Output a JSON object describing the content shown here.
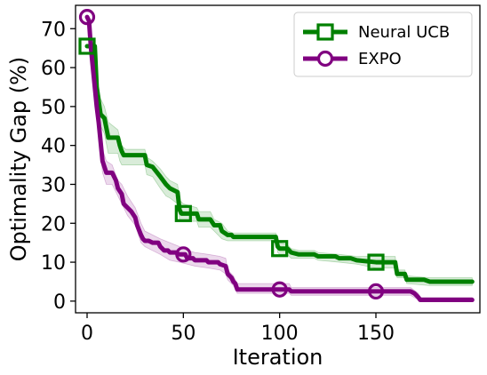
{
  "chart_data": {
    "type": "line",
    "xlabel": "Iteration",
    "ylabel": "Optimality Gap (%)",
    "xlim": [
      -6,
      204
    ],
    "ylim": [
      -3,
      76
    ],
    "x_ticks": [
      0,
      50,
      100,
      150
    ],
    "y_ticks": [
      0,
      10,
      20,
      30,
      40,
      50,
      60,
      70
    ],
    "grid": false,
    "legend": "top-right",
    "series": [
      {
        "name": "Neural UCB",
        "color": "#008000",
        "marker": "square",
        "marker_x": [
          0,
          50,
          100,
          150
        ],
        "points": [
          [
            0,
            65.5
          ],
          [
            4,
            65.5
          ],
          [
            5,
            55
          ],
          [
            7,
            48
          ],
          [
            9,
            47
          ],
          [
            11,
            42
          ],
          [
            16,
            42
          ],
          [
            17,
            40
          ],
          [
            18,
            38.5
          ],
          [
            19,
            37.5
          ],
          [
            30,
            37.5
          ],
          [
            31,
            35
          ],
          [
            34,
            34.5
          ],
          [
            38,
            32
          ],
          [
            41,
            30
          ],
          [
            43,
            29
          ],
          [
            47,
            28
          ],
          [
            48,
            23.5
          ],
          [
            49,
            22.5
          ],
          [
            57,
            22.5
          ],
          [
            58,
            21
          ],
          [
            64,
            21
          ],
          [
            66,
            19.5
          ],
          [
            69,
            19.5
          ],
          [
            70,
            18
          ],
          [
            73,
            17
          ],
          [
            75,
            17
          ],
          [
            76,
            16.5
          ],
          [
            98,
            16.5
          ],
          [
            99,
            14
          ],
          [
            100,
            13.5
          ],
          [
            104,
            13.5
          ],
          [
            106,
            12.5
          ],
          [
            110,
            12
          ],
          [
            118,
            12
          ],
          [
            120,
            11.5
          ],
          [
            129,
            11.5
          ],
          [
            131,
            11
          ],
          [
            137,
            11
          ],
          [
            140,
            10.5
          ],
          [
            150,
            10
          ],
          [
            160,
            10
          ],
          [
            161,
            7
          ],
          [
            165,
            7
          ],
          [
            166,
            5.5
          ],
          [
            175,
            5.5
          ],
          [
            178,
            5
          ],
          [
            200,
            5
          ]
        ],
        "band_upper": [
          [
            0,
            65.5
          ],
          [
            4,
            65.5
          ],
          [
            5,
            57
          ],
          [
            7,
            52
          ],
          [
            9,
            50
          ],
          [
            11,
            46
          ],
          [
            16,
            44
          ],
          [
            17,
            42
          ],
          [
            18,
            40
          ],
          [
            20,
            39
          ],
          [
            30,
            39
          ],
          [
            31,
            37
          ],
          [
            34,
            36
          ],
          [
            38,
            34
          ],
          [
            41,
            32
          ],
          [
            43,
            31
          ],
          [
            47,
            30
          ],
          [
            48,
            26
          ],
          [
            50,
            25
          ],
          [
            57,
            24
          ],
          [
            58,
            23
          ],
          [
            64,
            23
          ],
          [
            66,
            21
          ],
          [
            70,
            20
          ],
          [
            73,
            18
          ],
          [
            76,
            17.5
          ],
          [
            98,
            17.5
          ],
          [
            99,
            15.5
          ],
          [
            100,
            15
          ],
          [
            104,
            14.5
          ],
          [
            106,
            13.5
          ],
          [
            110,
            13
          ],
          [
            118,
            13
          ],
          [
            120,
            12.5
          ],
          [
            131,
            12
          ],
          [
            140,
            11.5
          ],
          [
            150,
            11.5
          ],
          [
            160,
            11.5
          ],
          [
            161,
            8
          ],
          [
            165,
            8
          ],
          [
            166,
            6.5
          ],
          [
            178,
            6
          ],
          [
            200,
            6
          ]
        ],
        "band_lower": [
          [
            0,
            65.5
          ],
          [
            4,
            65.5
          ],
          [
            5,
            52
          ],
          [
            7,
            45
          ],
          [
            9,
            43
          ],
          [
            11,
            38
          ],
          [
            16,
            38
          ],
          [
            17,
            36
          ],
          [
            18,
            35
          ],
          [
            20,
            35
          ],
          [
            30,
            35
          ],
          [
            31,
            32.5
          ],
          [
            34,
            32
          ],
          [
            38,
            29
          ],
          [
            41,
            27
          ],
          [
            43,
            26.5
          ],
          [
            47,
            25
          ],
          [
            48,
            21
          ],
          [
            50,
            20.5
          ],
          [
            57,
            20.5
          ],
          [
            58,
            19
          ],
          [
            64,
            19
          ],
          [
            66,
            18
          ],
          [
            70,
            16
          ],
          [
            73,
            15.5
          ],
          [
            76,
            15.5
          ],
          [
            98,
            15.5
          ],
          [
            99,
            12.5
          ],
          [
            100,
            12
          ],
          [
            104,
            12
          ],
          [
            106,
            11
          ],
          [
            110,
            11
          ],
          [
            118,
            11
          ],
          [
            120,
            10.5
          ],
          [
            131,
            10
          ],
          [
            140,
            9.5
          ],
          [
            150,
            8.5
          ],
          [
            160,
            8.5
          ],
          [
            161,
            6
          ],
          [
            165,
            6
          ],
          [
            166,
            4.5
          ],
          [
            178,
            4
          ],
          [
            200,
            4
          ]
        ]
      },
      {
        "name": "EXPO",
        "color": "#800080",
        "marker": "circle",
        "marker_x": [
          0,
          50,
          100,
          150
        ],
        "points": [
          [
            0,
            73
          ],
          [
            1,
            72
          ],
          [
            2,
            65
          ],
          [
            3,
            60
          ],
          [
            4,
            55
          ],
          [
            5,
            50
          ],
          [
            6,
            46
          ],
          [
            7,
            41
          ],
          [
            8,
            36
          ],
          [
            10,
            33
          ],
          [
            13,
            33
          ],
          [
            15,
            31
          ],
          [
            16,
            29
          ],
          [
            18,
            27.5
          ],
          [
            19,
            25
          ],
          [
            21,
            24
          ],
          [
            23,
            23
          ],
          [
            25,
            21.5
          ],
          [
            26,
            19.5
          ],
          [
            28,
            17
          ],
          [
            29,
            16
          ],
          [
            30,
            15.5
          ],
          [
            32,
            15.5
          ],
          [
            34,
            15
          ],
          [
            37,
            15
          ],
          [
            38,
            14
          ],
          [
            40,
            13
          ],
          [
            42,
            13
          ],
          [
            43,
            12.5
          ],
          [
            46,
            12.5
          ],
          [
            48,
            12
          ],
          [
            51,
            12
          ],
          [
            52,
            11
          ],
          [
            55,
            11
          ],
          [
            56,
            10.5
          ],
          [
            62,
            10.5
          ],
          [
            63,
            10
          ],
          [
            68,
            10
          ],
          [
            69,
            9.5
          ],
          [
            72,
            9
          ],
          [
            73,
            7
          ],
          [
            75,
            6
          ],
          [
            76,
            5
          ],
          [
            77,
            4.5
          ],
          [
            78,
            3
          ],
          [
            105,
            3
          ],
          [
            106,
            2.5
          ],
          [
            116,
            2.5
          ],
          [
            120,
            2.5
          ],
          [
            130,
            2.5
          ],
          [
            140,
            2.5
          ],
          [
            155,
            2.5
          ],
          [
            168,
            2.5
          ],
          [
            170,
            2
          ],
          [
            172,
            1
          ],
          [
            173,
            0.3
          ],
          [
            200,
            0.3
          ]
        ],
        "band_upper": [
          [
            0,
            73
          ],
          [
            2,
            68
          ],
          [
            4,
            58
          ],
          [
            6,
            50
          ],
          [
            8,
            39
          ],
          [
            10,
            36
          ],
          [
            13,
            35
          ],
          [
            16,
            31
          ],
          [
            18,
            30
          ],
          [
            21,
            27
          ],
          [
            25,
            24
          ],
          [
            28,
            20
          ],
          [
            30,
            18
          ],
          [
            34,
            17
          ],
          [
            38,
            16
          ],
          [
            43,
            15
          ],
          [
            48,
            14
          ],
          [
            52,
            13
          ],
          [
            56,
            12.5
          ],
          [
            63,
            12
          ],
          [
            69,
            11.5
          ],
          [
            72,
            11
          ],
          [
            73,
            8
          ],
          [
            76,
            6.5
          ],
          [
            78,
            4.5
          ],
          [
            105,
            4.5
          ],
          [
            106,
            3.5
          ],
          [
            140,
            3.5
          ],
          [
            168,
            3.5
          ],
          [
            172,
            2
          ],
          [
            173,
            1
          ],
          [
            200,
            1
          ]
        ],
        "band_lower": [
          [
            0,
            73
          ],
          [
            2,
            62
          ],
          [
            4,
            52
          ],
          [
            6,
            43
          ],
          [
            8,
            33
          ],
          [
            10,
            30
          ],
          [
            13,
            30
          ],
          [
            16,
            27
          ],
          [
            18,
            25
          ],
          [
            21,
            22
          ],
          [
            25,
            19.5
          ],
          [
            28,
            15
          ],
          [
            30,
            14
          ],
          [
            34,
            13
          ],
          [
            38,
            12
          ],
          [
            43,
            10.5
          ],
          [
            48,
            10
          ],
          [
            52,
            9.5
          ],
          [
            56,
            9
          ],
          [
            63,
            8.5
          ],
          [
            69,
            8
          ],
          [
            72,
            7
          ],
          [
            73,
            5.5
          ],
          [
            76,
            4
          ],
          [
            78,
            2
          ],
          [
            105,
            2
          ],
          [
            106,
            1.5
          ],
          [
            140,
            1.5
          ],
          [
            168,
            1.5
          ],
          [
            172,
            0.3
          ],
          [
            173,
            0
          ],
          [
            200,
            0
          ]
        ]
      }
    ]
  }
}
